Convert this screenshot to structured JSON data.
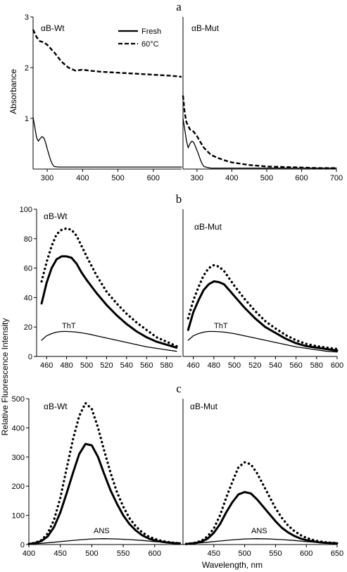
{
  "figure": {
    "y_label_top": "Absorbance",
    "y_label_bottom": "Relative Fluorescence Intensity",
    "x_label": "Wavelength, nm"
  },
  "chart_data": [
    {
      "id": "a-wt",
      "panel": "a",
      "type": "line",
      "title": "αB-Wt",
      "ylabel": "Absorbance",
      "xlim": [
        260,
        680
      ],
      "ylim": [
        0,
        3
      ],
      "xticks": [
        300,
        400,
        500,
        600
      ],
      "yticks": [
        1,
        2,
        3
      ],
      "legend": {
        "placement": "top-center",
        "entries": [
          "Fresh",
          "60°C"
        ]
      },
      "series": [
        {
          "name": "Fresh",
          "style": "thin-solid",
          "x": [
            260,
            265,
            270,
            275,
            280,
            285,
            290,
            295,
            300,
            305,
            310,
            315,
            320,
            330,
            340,
            360,
            400,
            500,
            600,
            680
          ],
          "y": [
            1.02,
            0.82,
            0.62,
            0.55,
            0.6,
            0.64,
            0.62,
            0.53,
            0.4,
            0.28,
            0.17,
            0.09,
            0.05,
            0.04,
            0.04,
            0.04,
            0.04,
            0.04,
            0.04,
            0.04
          ]
        },
        {
          "name": "60°C",
          "style": "dashed",
          "x": [
            260,
            270,
            280,
            290,
            300,
            320,
            340,
            360,
            380,
            400,
            420,
            450,
            500,
            550,
            600,
            650,
            680
          ],
          "y": [
            2.75,
            2.6,
            2.52,
            2.5,
            2.45,
            2.3,
            2.12,
            2.0,
            1.94,
            1.96,
            1.94,
            1.92,
            1.9,
            1.88,
            1.86,
            1.84,
            1.82
          ]
        }
      ]
    },
    {
      "id": "a-mut",
      "panel": "a",
      "type": "line",
      "title": "αB-Mut",
      "xlim": [
        260,
        700
      ],
      "ylim": [
        0,
        3
      ],
      "xticks": [
        300,
        400,
        500,
        600,
        700
      ],
      "series": [
        {
          "name": "Fresh",
          "style": "thin-solid",
          "x": [
            260,
            265,
            270,
            275,
            280,
            285,
            290,
            295,
            300,
            305,
            310,
            315,
            320,
            330,
            340,
            360,
            400,
            500,
            600,
            700
          ],
          "y": [
            1.0,
            0.78,
            0.55,
            0.42,
            0.5,
            0.55,
            0.53,
            0.46,
            0.37,
            0.28,
            0.18,
            0.1,
            0.05,
            0.03,
            0.02,
            0.02,
            0.02,
            0.02,
            0.02,
            0.02
          ]
        },
        {
          "name": "60°C",
          "style": "dashed",
          "x": [
            260,
            265,
            270,
            280,
            290,
            300,
            310,
            320,
            330,
            340,
            360,
            380,
            400,
            450,
            500,
            550,
            600,
            650,
            700
          ],
          "y": [
            1.45,
            1.1,
            0.92,
            0.78,
            0.74,
            0.65,
            0.53,
            0.42,
            0.35,
            0.28,
            0.22,
            0.17,
            0.13,
            0.08,
            0.05,
            0.04,
            0.03,
            0.02,
            0.02
          ]
        }
      ]
    },
    {
      "id": "b-wt",
      "panel": "b",
      "type": "line",
      "title": "αB-Wt",
      "xlim": [
        450,
        595
      ],
      "ylim": [
        0,
        100
      ],
      "xticks": [
        460,
        480,
        500,
        520,
        540,
        560,
        580
      ],
      "yticks": [
        0,
        20,
        40,
        60,
        80,
        100
      ],
      "annotation": "ThT",
      "series": [
        {
          "name": "ThT",
          "style": "thin-solid",
          "x": [
            455,
            460,
            465,
            470,
            475,
            480,
            485,
            490,
            500,
            510,
            520,
            530,
            540,
            550,
            560,
            570,
            580,
            590
          ],
          "y": [
            11,
            14,
            15.5,
            16.5,
            17,
            17,
            16.8,
            16.5,
            15.5,
            14,
            12.5,
            11,
            9.5,
            8,
            6.5,
            5.5,
            4.5,
            3.5
          ]
        },
        {
          "name": "bold",
          "style": "bold-solid",
          "x": [
            455,
            460,
            465,
            470,
            475,
            480,
            485,
            490,
            495,
            500,
            510,
            520,
            530,
            540,
            550,
            560,
            570,
            580,
            590
          ],
          "y": [
            36,
            50,
            60,
            66,
            68,
            68,
            67,
            63,
            57,
            52,
            43,
            35,
            28,
            22,
            17,
            13,
            10,
            8,
            6
          ]
        },
        {
          "name": "dotted",
          "style": "bold-dotted",
          "x": [
            455,
            460,
            465,
            470,
            475,
            480,
            485,
            490,
            495,
            500,
            510,
            520,
            530,
            540,
            550,
            560,
            570,
            580,
            590
          ],
          "y": [
            51,
            64,
            75,
            83,
            86,
            87,
            86,
            82,
            75,
            68,
            55,
            44,
            36,
            29,
            23,
            18,
            13,
            10,
            7
          ]
        }
      ]
    },
    {
      "id": "b-mut",
      "panel": "b",
      "type": "line",
      "title": "αB-Mut",
      "xlim": [
        450,
        600
      ],
      "ylim": [
        0,
        100
      ],
      "xticks": [
        460,
        480,
        500,
        520,
        540,
        560,
        580,
        600
      ],
      "annotation": "ThT",
      "series": [
        {
          "name": "ThT",
          "style": "thin-solid",
          "x": [
            455,
            460,
            465,
            470,
            475,
            480,
            485,
            490,
            500,
            510,
            520,
            530,
            540,
            550,
            560,
            570,
            580,
            590,
            600
          ],
          "y": [
            11,
            14,
            15.5,
            16.5,
            17,
            17,
            16.8,
            16.5,
            15.5,
            14,
            12.5,
            11,
            9.5,
            8,
            6.5,
            5.5,
            4.5,
            3.5,
            3
          ]
        },
        {
          "name": "bold",
          "style": "bold-solid",
          "x": [
            455,
            460,
            465,
            470,
            475,
            480,
            485,
            490,
            495,
            500,
            510,
            520,
            530,
            540,
            550,
            560,
            570,
            580,
            590,
            600
          ],
          "y": [
            18,
            30,
            38,
            45,
            49,
            51,
            50.5,
            49,
            45,
            41,
            33,
            26,
            20,
            16,
            12,
            9,
            7,
            6,
            5,
            4
          ]
        },
        {
          "name": "dotted",
          "style": "bold-dotted",
          "x": [
            455,
            460,
            465,
            470,
            475,
            480,
            485,
            490,
            495,
            500,
            510,
            520,
            530,
            540,
            550,
            560,
            570,
            580,
            590,
            600
          ],
          "y": [
            26,
            38,
            47,
            55,
            60,
            62,
            61,
            58,
            53,
            48,
            39,
            31,
            24,
            19,
            14.5,
            11,
            8.5,
            7,
            6,
            5
          ]
        }
      ]
    },
    {
      "id": "c-wt",
      "panel": "c",
      "type": "line",
      "title": "αB-Wt",
      "xlim": [
        400,
        645
      ],
      "ylim": [
        0,
        500
      ],
      "xticks": [
        400,
        450,
        500,
        550,
        600
      ],
      "yticks": [
        0,
        100,
        200,
        300,
        400,
        500
      ],
      "annotation": "ANS",
      "series": [
        {
          "name": "ANS",
          "style": "thin-solid",
          "x": [
            400,
            420,
            440,
            460,
            480,
            500,
            520,
            540,
            560,
            580,
            600,
            620,
            640
          ],
          "y": [
            2,
            4,
            8,
            12,
            16,
            19,
            20,
            19,
            17,
            14,
            10,
            7,
            5
          ]
        },
        {
          "name": "bold",
          "style": "bold-solid",
          "x": [
            400,
            410,
            420,
            430,
            440,
            450,
            460,
            470,
            480,
            490,
            500,
            510,
            520,
            530,
            540,
            550,
            560,
            570,
            580,
            590,
            600,
            610,
            620,
            630,
            640
          ],
          "y": [
            2,
            5,
            12,
            28,
            60,
            110,
            175,
            245,
            310,
            345,
            340,
            300,
            240,
            185,
            140,
            100,
            70,
            48,
            32,
            21,
            14,
            10,
            7,
            5,
            4
          ]
        },
        {
          "name": "dotted",
          "style": "bold-dotted",
          "x": [
            400,
            410,
            420,
            430,
            440,
            450,
            460,
            470,
            480,
            490,
            500,
            510,
            520,
            530,
            540,
            550,
            560,
            570,
            580,
            590,
            600,
            610,
            620,
            630,
            640
          ],
          "y": [
            2,
            6,
            15,
            38,
            85,
            160,
            260,
            360,
            440,
            485,
            465,
            400,
            320,
            245,
            180,
            130,
            90,
            62,
            42,
            28,
            19,
            13,
            9,
            6,
            4
          ]
        }
      ]
    },
    {
      "id": "c-mut",
      "panel": "c",
      "type": "line",
      "title": "αB-Mut",
      "xlim": [
        400,
        650
      ],
      "ylim": [
        0,
        500
      ],
      "xticks": [
        450,
        500,
        550,
        600,
        650
      ],
      "annotation": "ANS",
      "series": [
        {
          "name": "ANS",
          "style": "thin-solid",
          "x": [
            405,
            420,
            440,
            460,
            480,
            500,
            520,
            540,
            560,
            580,
            600,
            620,
            640,
            650
          ],
          "y": [
            2,
            4,
            8,
            12,
            16,
            19,
            20,
            19,
            17,
            14,
            10,
            7,
            5,
            4
          ]
        },
        {
          "name": "bold",
          "style": "bold-solid",
          "x": [
            405,
            420,
            430,
            440,
            450,
            460,
            470,
            480,
            490,
            500,
            510,
            520,
            530,
            540,
            550,
            560,
            570,
            580,
            590,
            600,
            610,
            620,
            630,
            640,
            650
          ],
          "y": [
            2,
            5,
            10,
            20,
            40,
            70,
            110,
            145,
            172,
            180,
            175,
            155,
            130,
            105,
            80,
            58,
            42,
            30,
            21,
            15,
            11,
            8,
            6,
            5,
            4
          ]
        },
        {
          "name": "dotted",
          "style": "bold-dotted",
          "x": [
            405,
            420,
            430,
            440,
            450,
            460,
            470,
            480,
            490,
            500,
            510,
            520,
            530,
            540,
            550,
            560,
            570,
            580,
            590,
            600,
            610,
            620,
            630,
            640,
            650
          ],
          "y": [
            2,
            6,
            13,
            28,
            55,
            100,
            160,
            215,
            265,
            282,
            275,
            245,
            205,
            165,
            125,
            92,
            66,
            47,
            33,
            23,
            16,
            11,
            8,
            6,
            5
          ]
        }
      ]
    }
  ]
}
